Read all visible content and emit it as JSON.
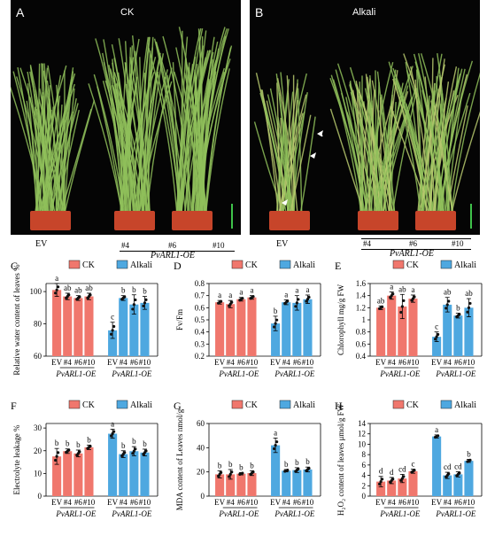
{
  "panels_photo": [
    {
      "letter": "A",
      "condition": "CK",
      "labels": {
        "ev": "EV",
        "l4": "#4",
        "l6": "#6",
        "l10": "#10",
        "gene": "PvARL1-OE"
      }
    },
    {
      "letter": "B",
      "condition": "Alkali",
      "labels": {
        "ev": "EV",
        "l4": "#4",
        "l6": "#6",
        "l10": "#10",
        "gene": "PvARL1-OE"
      }
    }
  ],
  "colors": {
    "ck": "#f0776d",
    "alkali": "#4ea8e0",
    "photo_bg": "#050505",
    "plant": "#8fbf5a",
    "pot": "#c7452a"
  },
  "chart_data": [
    {
      "letter": "C",
      "type": "bar",
      "ylabel": "Relative water content of leaves %",
      "ylim": [
        60,
        105
      ],
      "yticks": [
        60,
        80,
        100
      ],
      "categories": [
        "EV",
        "#4",
        "#6",
        "#10"
      ],
      "group_label": "PvARL1-OE",
      "legend": [
        "CK",
        "Alkali"
      ],
      "series": [
        {
          "name": "CK",
          "values": [
            101,
            97,
            96,
            97
          ],
          "err": [
            4,
            2,
            1.5,
            2
          ],
          "letters": [
            "a",
            "ab",
            "ab",
            "ab"
          ]
        },
        {
          "name": "Alkali",
          "values": [
            76,
            96,
            92,
            93
          ],
          "err": [
            5,
            1.5,
            6,
            4
          ],
          "letters": [
            "c",
            "b",
            "b",
            "b"
          ]
        }
      ]
    },
    {
      "letter": "D",
      "type": "bar",
      "ylabel": "Fv/Fm",
      "ylim": [
        0.2,
        0.8
      ],
      "yticks": [
        0.2,
        0.3,
        0.4,
        0.5,
        0.6,
        0.7,
        0.8
      ],
      "categories": [
        "EV",
        "#4",
        "#6",
        "#10"
      ],
      "group_label": "PvARL1-OE",
      "legend": [
        "CK",
        "Alkali"
      ],
      "series": [
        {
          "name": "CK",
          "values": [
            0.645,
            0.63,
            0.67,
            0.685
          ],
          "err": [
            0.015,
            0.03,
            0.015,
            0.015
          ],
          "letters": [
            "a",
            "a",
            "a",
            "a"
          ]
        },
        {
          "name": "Alkali",
          "values": [
            0.47,
            0.645,
            0.64,
            0.67
          ],
          "err": [
            0.06,
            0.02,
            0.06,
            0.035
          ],
          "letters": [
            "b",
            "a",
            "a",
            "a"
          ]
        }
      ]
    },
    {
      "letter": "E",
      "type": "bar",
      "ylabel": "Chlorophyll mg/g FW",
      "ylim": [
        0.4,
        1.6
      ],
      "yticks": [
        0.4,
        0.6,
        0.8,
        1.0,
        1.2,
        1.4,
        1.6
      ],
      "categories": [
        "EV",
        "#4",
        "#6",
        "#10"
      ],
      "group_label": "PvARL1-OE",
      "legend": [
        "CK",
        "Alkali"
      ],
      "series": [
        {
          "name": "CK",
          "values": [
            1.2,
            1.4,
            1.22,
            1.35
          ],
          "err": [
            0.03,
            0.06,
            0.2,
            0.06
          ],
          "letters": [
            "ab",
            "a",
            "ab",
            "a"
          ]
        },
        {
          "name": "Alkali",
          "values": [
            0.72,
            1.25,
            1.07,
            1.2
          ],
          "err": [
            0.08,
            0.12,
            0.04,
            0.15
          ],
          "letters": [
            "c",
            "ab",
            "b",
            "ab"
          ]
        }
      ]
    },
    {
      "letter": "F",
      "type": "bar",
      "ylabel": "Electrolyte leakage %",
      "ylim": [
        0,
        32
      ],
      "yticks": [
        0,
        10,
        20,
        30
      ],
      "categories": [
        "EV",
        "#4",
        "#6",
        "#10"
      ],
      "group_label": "PvARL1-OE",
      "legend": [
        "CK",
        "Alkali"
      ],
      "series": [
        {
          "name": "CK",
          "values": [
            17.5,
            19.8,
            18.8,
            21.5
          ],
          "err": [
            3.5,
            1,
            1.5,
            1
          ],
          "letters": [
            "b",
            "b",
            "b",
            "b"
          ]
        },
        {
          "name": "Alkali",
          "values": [
            27.5,
            18.5,
            19.8,
            19.2
          ],
          "err": [
            2,
            1.5,
            2,
            1.5
          ],
          "letters": [
            "a",
            "b",
            "b",
            "b"
          ]
        }
      ]
    },
    {
      "letter": "G",
      "type": "bar",
      "ylabel": "MDA content of Leaves nmol/g",
      "ylim": [
        0,
        60
      ],
      "yticks": [
        0,
        20,
        40,
        60
      ],
      "categories": [
        "EV",
        "#4",
        "#6",
        "#10"
      ],
      "group_label": "PvARL1-OE",
      "legend": [
        "CK",
        "Alkali"
      ],
      "series": [
        {
          "name": "CK",
          "values": [
            18,
            18,
            18.5,
            19
          ],
          "err": [
            3,
            4,
            1,
            2
          ],
          "letters": [
            "b",
            "b",
            "b",
            "b"
          ]
        },
        {
          "name": "Alkali",
          "values": [
            42,
            21,
            21.5,
            22
          ],
          "err": [
            6,
            1,
            2,
            2
          ],
          "letters": [
            "a",
            "b",
            "b",
            "b"
          ]
        }
      ]
    },
    {
      "letter": "H",
      "type": "bar",
      "ylabel": "H₂O₂ content of leaves μmol/g FW",
      "ylim": [
        0,
        14
      ],
      "yticks": [
        0,
        2,
        4,
        6,
        8,
        10,
        12,
        14
      ],
      "categories": [
        "EV",
        "#4",
        "#6",
        "#10"
      ],
      "group_label": "PvARL1-OE",
      "legend": [
        "CK",
        "Alkali"
      ],
      "series": [
        {
          "name": "CK",
          "values": [
            2.8,
            3.0,
            3.4,
            4.8
          ],
          "err": [
            1,
            0.6,
            0.8,
            0.4
          ],
          "letters": [
            "d",
            "d",
            "cd",
            "c"
          ]
        },
        {
          "name": "Alkali",
          "values": [
            11.5,
            4.0,
            4.2,
            6.8
          ],
          "err": [
            0.3,
            0.6,
            0.5,
            0.3
          ],
          "letters": [
            "a",
            "cd",
            "cd",
            "b"
          ]
        }
      ]
    }
  ]
}
